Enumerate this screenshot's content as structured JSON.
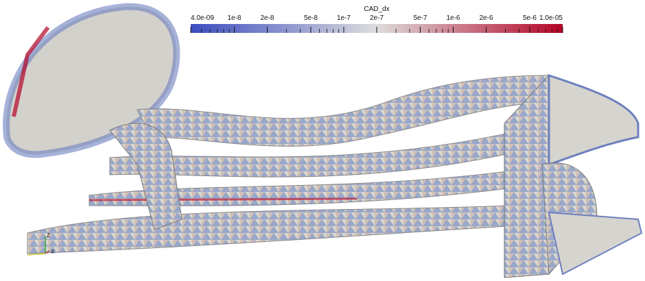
{
  "colorbar": {
    "title": "CAD_dx",
    "scale": "log",
    "lim": [
      4e-09,
      1e-05
    ],
    "ticks": [
      {
        "value": 4e-09,
        "label": "4.0e-09"
      },
      {
        "value": 1e-08,
        "label": "1e-8"
      },
      {
        "value": 2e-08,
        "label": "2e-8"
      },
      {
        "value": 5e-08,
        "label": "5e-8"
      },
      {
        "value": 1e-07,
        "label": "1e-7"
      },
      {
        "value": 2e-07,
        "label": "2e-7"
      },
      {
        "value": 5e-07,
        "label": "5e-7"
      },
      {
        "value": 1e-06,
        "label": "1e-6"
      },
      {
        "value": 2e-06,
        "label": "2e-6"
      },
      {
        "value": 5e-06,
        "label": "5e-6"
      },
      {
        "value": 1e-05,
        "label": "1.0e-05"
      }
    ],
    "minor_ticks": [
      5e-09,
      6e-09,
      7e-09,
      8e-09,
      9e-09,
      3e-08,
      4e-08,
      6e-08,
      7e-08,
      8e-08,
      9e-08,
      3e-07,
      4e-07,
      6e-07,
      7e-07,
      8e-07,
      9e-07,
      3e-06,
      4e-06,
      6e-06,
      7e-06,
      8e-06,
      9e-06
    ],
    "colormap": [
      "#3b4cc0",
      "#dddddd",
      "#b40426"
    ]
  },
  "orientation_axes": {
    "labels": [
      "Z",
      "X"
    ]
  }
}
